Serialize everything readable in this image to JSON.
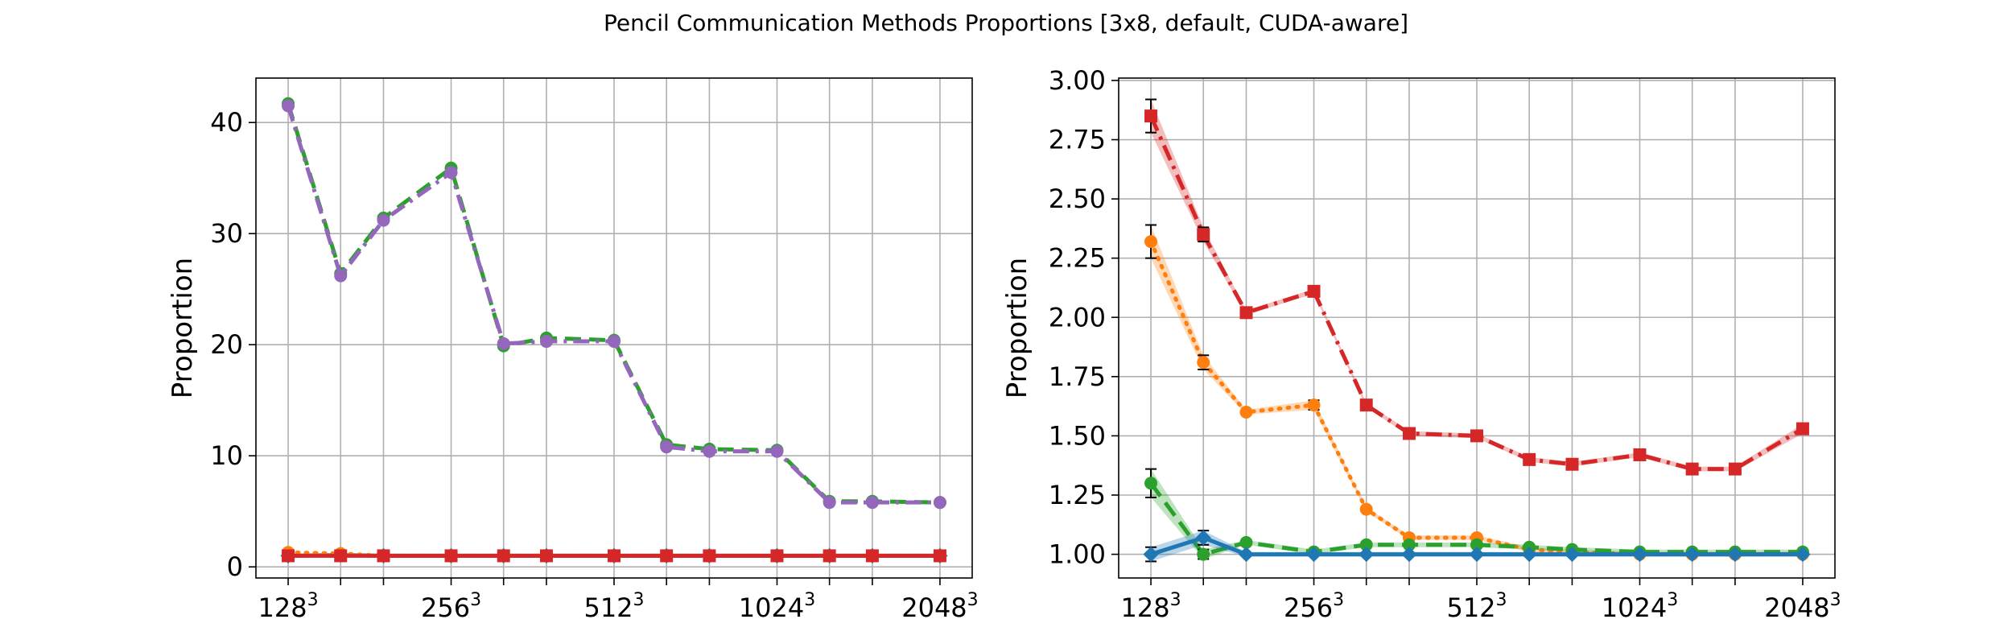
{
  "title": "Pencil Communication Methods Proportions [3x8, default, CUDA-aware]",
  "colors": {
    "blue": "#1f77b4",
    "orange": "#ff7f0e",
    "green": "#2ca02c",
    "red": "#d62728",
    "purple": "#9467bd"
  },
  "chart_data": [
    {
      "type": "line",
      "ylabel": "Proportion",
      "xlabel": "",
      "x": [
        128,
        160,
        192,
        256,
        320,
        384,
        512,
        640,
        768,
        1024,
        1280,
        1536,
        2048
      ],
      "x_ticks": [
        {
          "x": 128,
          "base": "128",
          "exp": "3"
        },
        {
          "x": 256,
          "base": "256",
          "exp": "3"
        },
        {
          "x": 512,
          "base": "512",
          "exp": "3"
        },
        {
          "x": 1024,
          "base": "1024",
          "exp": "3"
        },
        {
          "x": 2048,
          "base": "2048",
          "exp": "3"
        }
      ],
      "ylim": [
        -1,
        44
      ],
      "y_ticks": [
        0,
        10,
        20,
        30,
        40
      ],
      "grid": true,
      "series": [
        {
          "color": "#1f77b4",
          "marker": "diamond",
          "dash": "solid",
          "values": [
            1.0,
            1.06,
            1.0,
            1.0,
            1.0,
            1.0,
            1.0,
            1.0,
            1.0,
            1.0,
            1.0,
            1.0,
            1.0
          ]
        },
        {
          "color": "#ff7f0e",
          "marker": "circle",
          "dash": "dotted",
          "values": [
            1.3,
            1.2,
            1.0,
            1.0,
            1.0,
            1.0,
            1.0,
            1.0,
            1.0,
            1.0,
            1.0,
            1.0,
            1.0
          ]
        },
        {
          "color": "#d62728",
          "marker": "square",
          "dash": "solid",
          "values": [
            1.0,
            1.0,
            1.0,
            1.0,
            1.0,
            1.0,
            1.0,
            1.0,
            1.0,
            1.0,
            1.0,
            1.0,
            1.0
          ]
        },
        {
          "color": "#2ca02c",
          "marker": "circle",
          "dash": "dashed",
          "values": [
            41.7,
            26.4,
            31.4,
            35.9,
            19.9,
            20.6,
            20.4,
            11.0,
            10.6,
            10.5,
            5.9,
            5.9,
            5.8
          ]
        },
        {
          "color": "#9467bd",
          "marker": "circle",
          "dash": "dashdot",
          "values": [
            41.5,
            26.2,
            31.2,
            35.5,
            20.1,
            20.3,
            20.3,
            10.8,
            10.4,
            10.4,
            5.8,
            5.8,
            5.8
          ]
        }
      ]
    },
    {
      "type": "line",
      "ylabel": "Proportion",
      "xlabel": "",
      "x": [
        128,
        160,
        192,
        256,
        320,
        384,
        512,
        640,
        768,
        1024,
        1280,
        1536,
        2048
      ],
      "x_ticks": [
        {
          "x": 128,
          "base": "128",
          "exp": "3"
        },
        {
          "x": 256,
          "base": "256",
          "exp": "3"
        },
        {
          "x": 512,
          "base": "512",
          "exp": "3"
        },
        {
          "x": 1024,
          "base": "1024",
          "exp": "3"
        },
        {
          "x": 2048,
          "base": "2048",
          "exp": "3"
        }
      ],
      "ylim": [
        0.9,
        3.01
      ],
      "y_ticks": [
        "1.00",
        "1.25",
        "1.50",
        "1.75",
        "2.00",
        "2.25",
        "2.50",
        "2.75",
        "3.00"
      ],
      "grid": true,
      "series": [
        {
          "color": "#d62728",
          "marker": "square",
          "dash": "dashdot",
          "values": [
            2.85,
            2.35,
            2.02,
            2.11,
            1.63,
            1.51,
            1.5,
            1.4,
            1.38,
            1.42,
            1.36,
            1.36,
            1.53
          ],
          "err": [
            0.07,
            0.03,
            0.01,
            0.01,
            0.01,
            0.01,
            0.01,
            0.01,
            0.01,
            0.01,
            0.01,
            0.01,
            0.02
          ]
        },
        {
          "color": "#ff7f0e",
          "marker": "circle",
          "dash": "dotted",
          "values": [
            2.32,
            1.81,
            1.6,
            1.63,
            1.19,
            1.07,
            1.07,
            1.02,
            1.01,
            1.0,
            1.0,
            1.0,
            1.0
          ],
          "err": [
            0.07,
            0.03,
            0.01,
            0.02,
            0.01,
            0.01,
            0.01,
            0.01,
            0.01,
            0.01,
            0.01,
            0.01,
            0.01
          ]
        },
        {
          "color": "#2ca02c",
          "marker": "circle",
          "dash": "dashed",
          "values": [
            1.3,
            1.0,
            1.05,
            1.01,
            1.04,
            1.04,
            1.04,
            1.03,
            1.02,
            1.01,
            1.01,
            1.01,
            1.01
          ],
          "err": [
            0.06,
            0.02,
            0.01,
            0.01,
            0.01,
            0.01,
            0.01,
            0.01,
            0.01,
            0.01,
            0.01,
            0.01,
            0.01
          ]
        },
        {
          "color": "#1f77b4",
          "marker": "diamond",
          "dash": "solid",
          "values": [
            1.0,
            1.07,
            1.0,
            1.0,
            1.0,
            1.0,
            1.0,
            1.0,
            1.0,
            1.0,
            1.0,
            1.0,
            1.0
          ],
          "err": [
            0.03,
            0.03,
            0.01,
            0.01,
            0.01,
            0.01,
            0.01,
            0.01,
            0.01,
            0.01,
            0.01,
            0.01,
            0.01
          ]
        }
      ]
    }
  ]
}
